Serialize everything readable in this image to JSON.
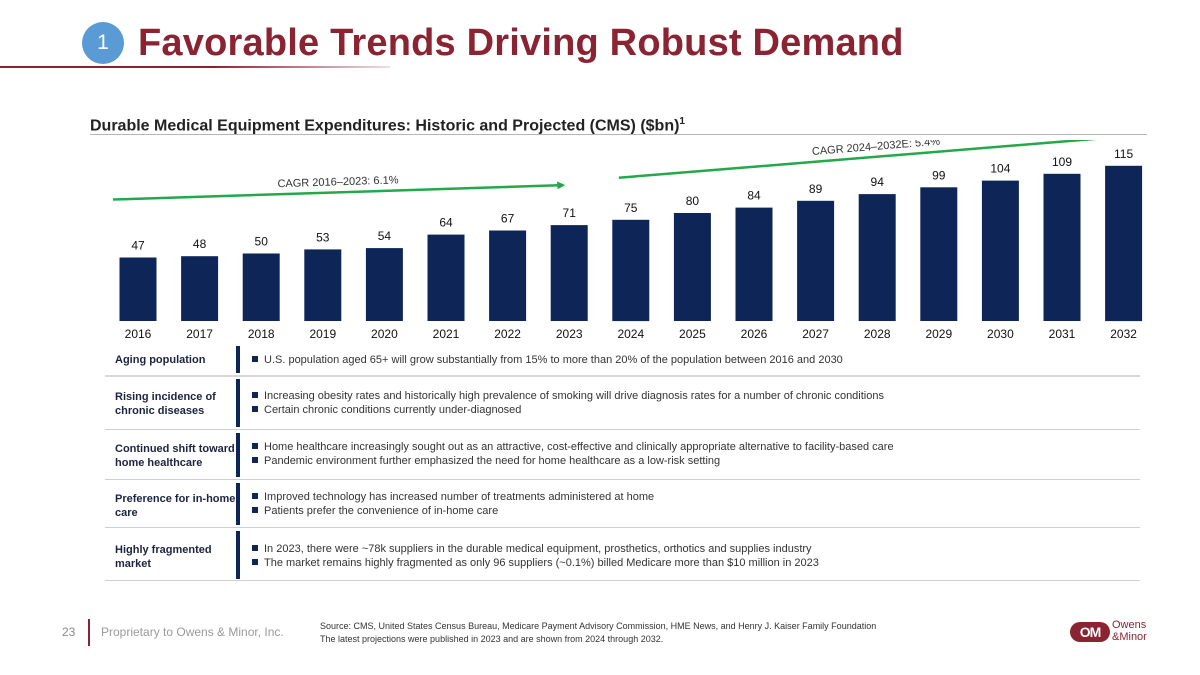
{
  "header": {
    "badge": "1",
    "title": "Favorable Trends Driving Robust Demand",
    "subtitle": "Durable Medical Equipment Expenditures: Historic and Projected (CMS) ($bn)",
    "subtitle_sup": "1"
  },
  "chart_data": {
    "type": "bar",
    "title": "Durable Medical Equipment Expenditures: Historic and Projected (CMS) ($bn)",
    "categories": [
      "2016",
      "2017",
      "2018",
      "2019",
      "2020",
      "2021",
      "2022",
      "2023",
      "2024",
      "2025",
      "2026",
      "2027",
      "2028",
      "2029",
      "2030",
      "2031",
      "2032"
    ],
    "values": [
      47,
      48,
      50,
      53,
      54,
      64,
      67,
      71,
      75,
      80,
      84,
      89,
      94,
      99,
      104,
      109,
      115
    ],
    "bar_color": "#0e2657",
    "annotations": [
      {
        "text": "CAGR 2016–2023: 6.1%",
        "from": "2016",
        "to": "2023",
        "color": "#23a84a"
      },
      {
        "text": "CAGR 2024–2032E: 5.4%",
        "from": "2024",
        "to": "2032",
        "color": "#23a84a"
      }
    ],
    "ylim": [
      0,
      120
    ],
    "xlabel": "",
    "ylabel": ""
  },
  "drivers": [
    {
      "label": "Aging population",
      "bullets": [
        "U.S. population aged 65+ will grow substantially from 15% to more than 20% of the population between 2016 and 2030"
      ]
    },
    {
      "label": "Rising incidence of chronic diseases",
      "bullets": [
        "Increasing obesity rates and historically high prevalence of smoking will drive diagnosis rates for a number of chronic conditions",
        "Certain chronic conditions currently under-diagnosed"
      ]
    },
    {
      "label": "Continued shift toward home healthcare",
      "bullets": [
        "Home healthcare increasingly sought out as an attractive, cost-effective and clinically appropriate alternative to facility-based care",
        "Pandemic environment further emphasized the need for home healthcare as a low-risk setting"
      ]
    },
    {
      "label": "Preference for in-home care",
      "bullets": [
        "Improved technology has increased number of treatments administered at home",
        "Patients prefer the convenience of in-home care"
      ]
    },
    {
      "label": "Highly fragmented market",
      "bullets": [
        "In 2023, there were ~78k suppliers in the durable medical equipment, prosthetics, orthotics and supplies industry",
        "The market remains highly fragmented as only 96 suppliers (~0.1%) billed Medicare more than $10 million in 2023"
      ]
    }
  ],
  "footer": {
    "page_number": "23",
    "proprietary": "Proprietary to Owens & Minor, Inc.",
    "source_line1": "Source: CMS, United States Census Bureau, Medicare Payment Advisory Commission, HME News, and Henry J. Kaiser Family Foundation",
    "source_line2": "The latest projections were published in 2023 and are shown from 2024 through 2032.",
    "logo_mark": "OM",
    "logo_line1": "Owens",
    "logo_line2": "&Minor"
  }
}
